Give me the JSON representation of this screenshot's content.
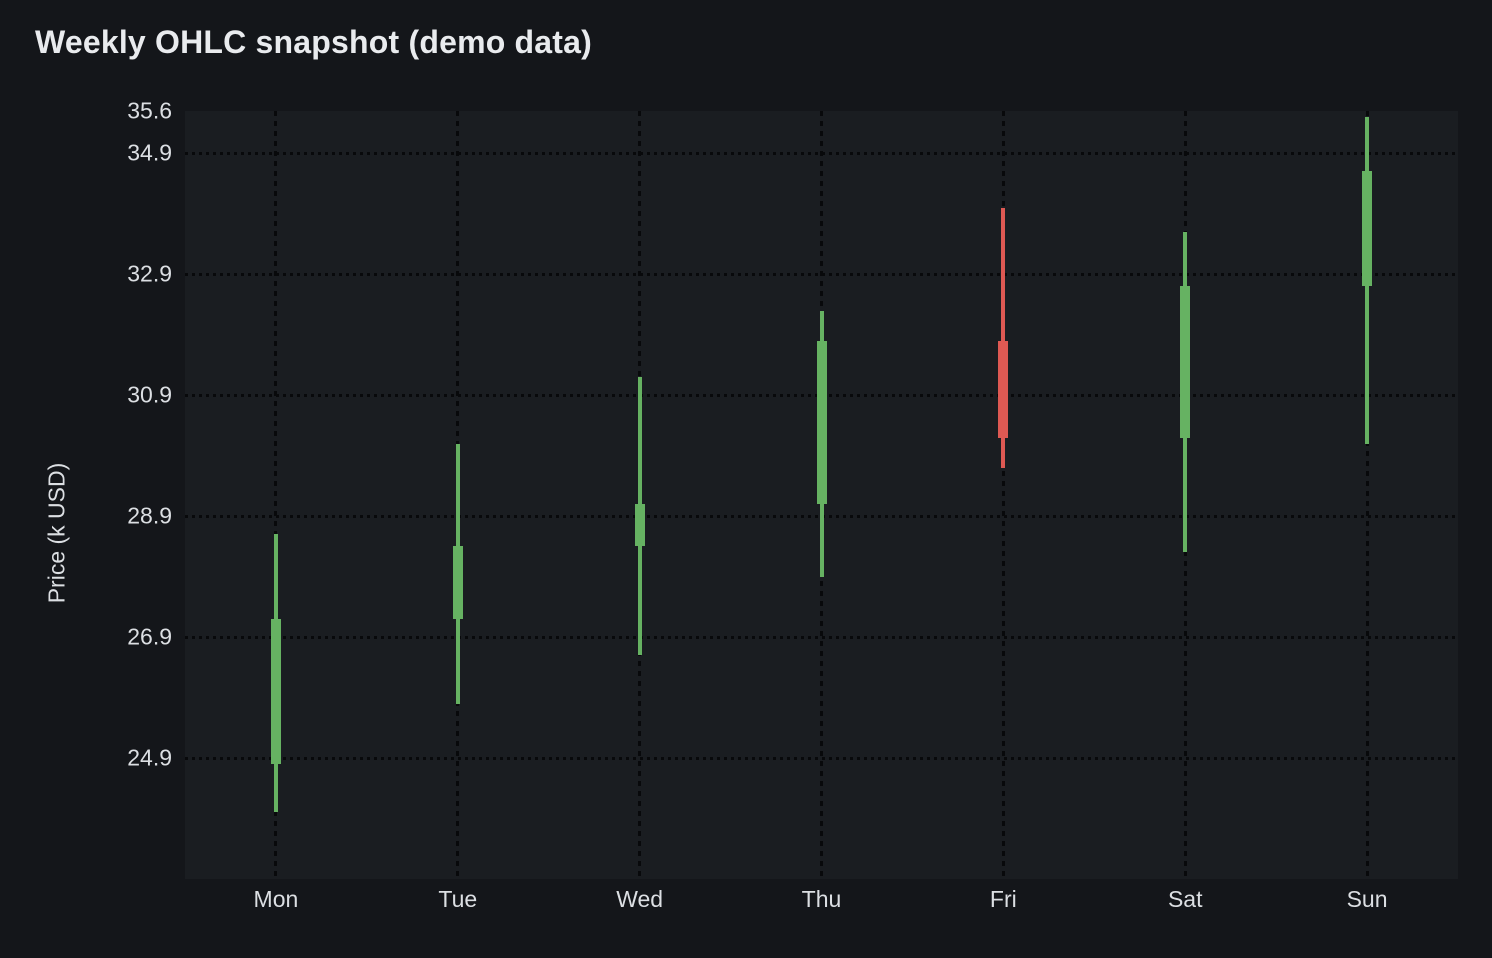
{
  "page": {
    "title": "Weekly OHLC snapshot (demo data)"
  },
  "colors": {
    "background": "#14161a",
    "plot_background": "#1a1d21",
    "grid": "#08090b",
    "text": "#dcdfe3",
    "title_text": "#e9ebee",
    "up": "#66b262",
    "down": "#de5953"
  },
  "chart_data": {
    "type": "candlestick",
    "title": "Weekly OHLC snapshot (demo data)",
    "xlabel": "",
    "ylabel": "Price (k USD)",
    "legend": "none",
    "grid": "dotted, both axes, darker than background",
    "categories": [
      "Mon",
      "Tue",
      "Wed",
      "Thu",
      "Fri",
      "Sat",
      "Sun"
    ],
    "ohlc": [
      {
        "day": "Mon",
        "open": 24.8,
        "high": 28.6,
        "low": 24.0,
        "close": 27.2,
        "direction": "up"
      },
      {
        "day": "Tue",
        "open": 27.2,
        "high": 30.1,
        "low": 25.8,
        "close": 28.4,
        "direction": "up"
      },
      {
        "day": "Wed",
        "open": 28.4,
        "high": 31.2,
        "low": 26.6,
        "close": 29.1,
        "direction": "up"
      },
      {
        "day": "Thu",
        "open": 29.1,
        "high": 32.3,
        "low": 27.9,
        "close": 31.8,
        "direction": "up"
      },
      {
        "day": "Fri",
        "open": 31.8,
        "high": 34.0,
        "low": 29.7,
        "close": 30.2,
        "direction": "down"
      },
      {
        "day": "Sat",
        "open": 30.2,
        "high": 33.6,
        "low": 28.3,
        "close": 32.7,
        "direction": "up"
      },
      {
        "day": "Sun",
        "open": 32.7,
        "high": 35.5,
        "low": 30.1,
        "close": 34.6,
        "direction": "up"
      }
    ],
    "y_ticks": [
      35.6,
      34.9,
      32.9,
      30.9,
      28.9,
      26.9,
      24.9
    ],
    "y_tick_format": "one-decimal",
    "ylim": [
      22.9,
      35.6
    ],
    "up_color": "#66b262",
    "down_color": "#de5953"
  }
}
